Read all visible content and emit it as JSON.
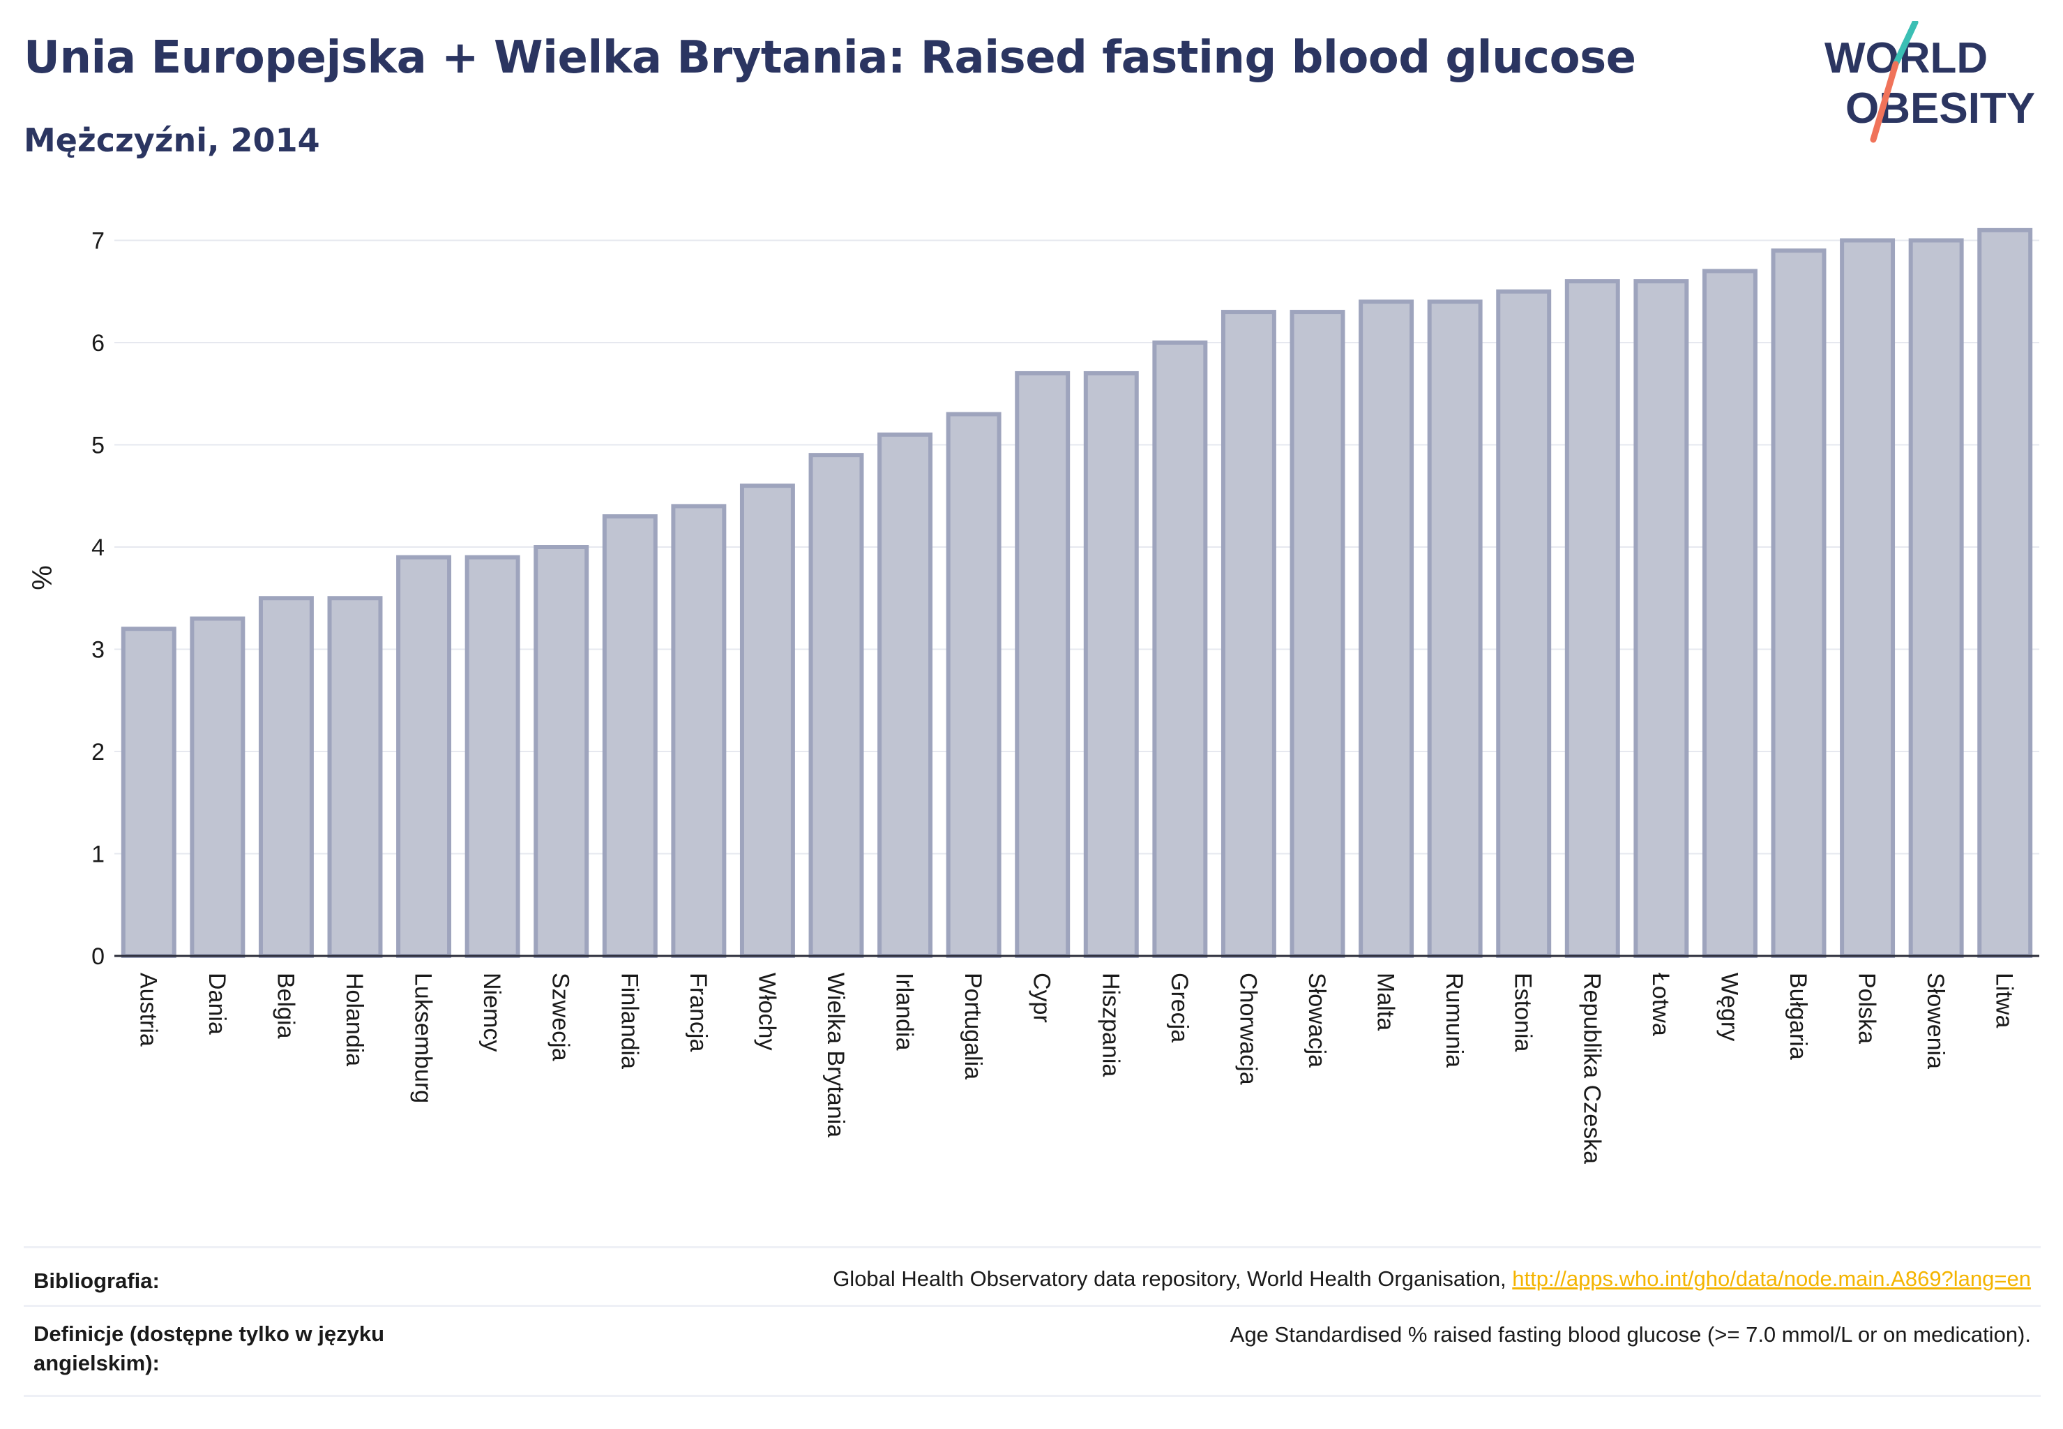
{
  "title": "Unia Europejska + Wielka Brytania: Raised fasting blood glucose",
  "subtitle": "Mężczyźni, 2014",
  "logo": {
    "line1": "WORLD",
    "line2": "OBESITY",
    "colors": {
      "text": "#2b3561",
      "slash_top": "#3bbfb4",
      "slash_bottom": "#f0735a"
    }
  },
  "chart_data": {
    "type": "bar",
    "ylabel": "%",
    "ylim": [
      0,
      7.2
    ],
    "yticks": [
      0,
      1,
      2,
      3,
      4,
      5,
      6,
      7
    ],
    "grid": true,
    "bar_color": "#c0c4d2",
    "bar_edge_color": "#9ea4bd",
    "categories": [
      "Austria",
      "Dania",
      "Belgia",
      "Holandia",
      "Luksemburg",
      "Niemcy",
      "Szwecja",
      "Finlandia",
      "Francja",
      "Włochy",
      "Wielka Brytania",
      "Irlandia",
      "Portugalia",
      "Cypr",
      "Hiszpania",
      "Grecja",
      "Chorwacja",
      "Słowacja",
      "Malta",
      "Rumunia",
      "Estonia",
      "Republika Czeska",
      "Łotwa",
      "Węgry",
      "Bułgaria",
      "Polska",
      "Słowenia",
      "Litwa"
    ],
    "values": [
      3.2,
      3.3,
      3.5,
      3.5,
      3.9,
      3.9,
      4.0,
      4.3,
      4.4,
      4.6,
      4.9,
      5.1,
      5.3,
      5.7,
      5.7,
      6.0,
      6.3,
      6.3,
      6.4,
      6.4,
      6.5,
      6.6,
      6.6,
      6.7,
      6.9,
      7.0,
      7.0,
      7.1
    ]
  },
  "footer": {
    "bibliography_label": "Bibliografia:",
    "bibliography_text": "Global Health Observatory data repository, World Health Organisation, ",
    "bibliography_link": "http://apps.who.int/gho/data/node.main.A869?lang=en",
    "definitions_label": "Definicje (dostępne tylko w języku angielskim):",
    "definitions_text": "Age Standardised % raised fasting blood glucose (>= 7.0 mmol/L or on medication)."
  }
}
